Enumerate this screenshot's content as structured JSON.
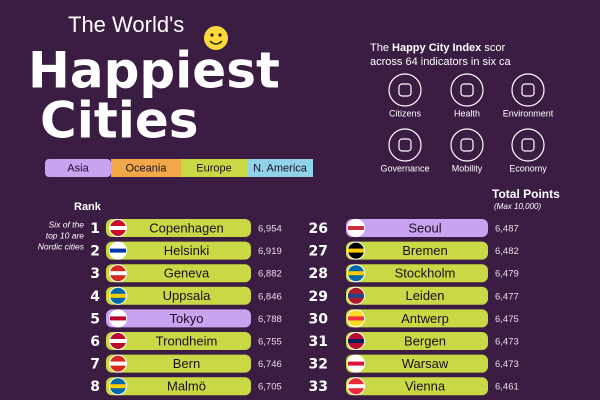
{
  "title": {
    "line1": "The World's",
    "line2": "Happiest",
    "line3": "Cities"
  },
  "legend": [
    "Asia",
    "Oceania",
    "Europe",
    "N. America"
  ],
  "intro": {
    "lead": "The",
    "bold": "Happy City Index",
    "rest": "scor",
    "line2": "across 64 indicators in six ca"
  },
  "categories": [
    "Citizens",
    "Health",
    "Environment",
    "Governance",
    "Mobility",
    "Economy"
  ],
  "rank_header": "Rank",
  "note": [
    "Six of the",
    "top 10 are",
    "Nordic cities"
  ],
  "points_header": "Total Points",
  "points_sub": "(Max 10,000)",
  "columns": [
    [
      {
        "rank": "1",
        "city": "Copenhagen",
        "points": "6,954",
        "region": "Europe"
      },
      {
        "rank": "2",
        "city": "Helsinki",
        "points": "6,919",
        "region": "Europe"
      },
      {
        "rank": "3",
        "city": "Geneva",
        "points": "6,882",
        "region": "Europe"
      },
      {
        "rank": "4",
        "city": "Uppsala",
        "points": "6,846",
        "region": "Europe"
      },
      {
        "rank": "5",
        "city": "Tokyo",
        "points": "6,788",
        "region": "Asia"
      },
      {
        "rank": "6",
        "city": "Trondheim",
        "points": "6,755",
        "region": "Europe"
      },
      {
        "rank": "7",
        "city": "Bern",
        "points": "6,746",
        "region": "Europe"
      },
      {
        "rank": "8",
        "city": "Malmö",
        "points": "6,705",
        "region": "Europe"
      }
    ],
    [
      {
        "rank": "26",
        "city": "Seoul",
        "points": "6,487",
        "region": "Asia"
      },
      {
        "rank": "27",
        "city": "Bremen",
        "points": "6,482",
        "region": "Europe"
      },
      {
        "rank": "28",
        "city": "Stockholm",
        "points": "6,479",
        "region": "Europe"
      },
      {
        "rank": "29",
        "city": "Leiden",
        "points": "6,477",
        "region": "Europe"
      },
      {
        "rank": "30",
        "city": "Antwerp",
        "points": "6,475",
        "region": "Europe"
      },
      {
        "rank": "31",
        "city": "Bergen",
        "points": "6,473",
        "region": "Europe"
      },
      {
        "rank": "32",
        "city": "Warsaw",
        "points": "6,473",
        "region": "Europe"
      },
      {
        "rank": "33",
        "city": "Vienna",
        "points": "6,461",
        "region": "Europe"
      }
    ]
  ]
}
